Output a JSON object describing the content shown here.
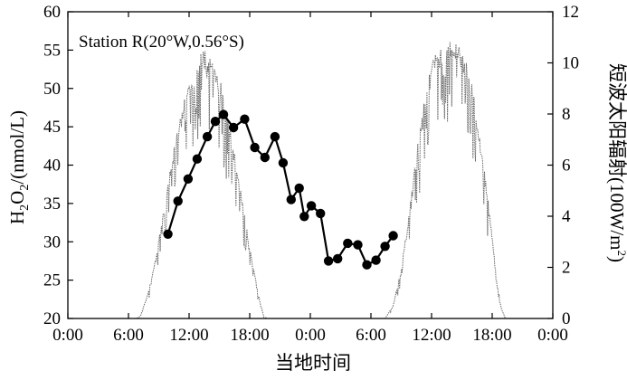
{
  "chart_data": {
    "type": "line",
    "annotation": "Station R(20°W,0.56°S)",
    "xlabel": "当地时间",
    "ylabel_left": {
      "base": "H",
      "sub1": "2",
      "mid": "O",
      "sub2": "2",
      "tail": "/(nmol/L)"
    },
    "ylabel_right": {
      "text": "短波太阳辐射(100W/m",
      "sup": "2",
      "close": ")"
    },
    "x_ticks": [
      "0:00",
      "6:00",
      "12:00",
      "18:00",
      "0:00",
      "6:00",
      "12:00",
      "18:00",
      "0:00"
    ],
    "x_tick_hours": [
      0,
      6,
      12,
      18,
      24,
      30,
      36,
      42,
      48
    ],
    "xlim_hours": [
      0,
      48
    ],
    "y_left_ticks": [
      "20",
      "25",
      "30",
      "35",
      "40",
      "45",
      "50",
      "55",
      "60"
    ],
    "y_left_values": [
      20,
      25,
      30,
      35,
      40,
      45,
      50,
      55,
      60
    ],
    "ylim_left": [
      20,
      60
    ],
    "y_right_ticks": [
      "0",
      "2",
      "4",
      "6",
      "8",
      "10",
      "12"
    ],
    "y_right_values": [
      0,
      2,
      4,
      6,
      8,
      10,
      12
    ],
    "ylim_right": [
      0,
      12
    ],
    "grid": false,
    "series": [
      {
        "axis": "left",
        "style": "line-markers",
        "color": "#000000",
        "points": [
          [
            9.9,
            31.0
          ],
          [
            10.9,
            35.3
          ],
          [
            11.9,
            38.2
          ],
          [
            12.8,
            40.8
          ],
          [
            13.8,
            43.7
          ],
          [
            14.6,
            45.7
          ],
          [
            15.4,
            46.6
          ],
          [
            16.4,
            44.9
          ],
          [
            17.5,
            46.0
          ],
          [
            18.5,
            42.3
          ],
          [
            19.5,
            41.0
          ],
          [
            20.5,
            43.7
          ],
          [
            21.3,
            40.3
          ],
          [
            22.1,
            35.5
          ],
          [
            22.9,
            37.0
          ],
          [
            23.4,
            33.3
          ],
          [
            24.1,
            34.7
          ],
          [
            25.0,
            33.7
          ],
          [
            25.8,
            27.5
          ],
          [
            26.7,
            27.8
          ],
          [
            27.7,
            29.8
          ],
          [
            28.7,
            29.6
          ],
          [
            29.6,
            27.0
          ],
          [
            30.5,
            27.6
          ],
          [
            31.4,
            29.4
          ],
          [
            32.2,
            30.8
          ]
        ]
      },
      {
        "axis": "right",
        "style": "dotted-trace",
        "color": "#6a6a6a",
        "envelope": [
          [
            0.8,
            0
          ],
          [
            6.8,
            0
          ],
          [
            7.2,
            0.1
          ],
          [
            8.0,
            1.1
          ],
          [
            8.8,
            2.6
          ],
          [
            9.6,
            4.6
          ],
          [
            10.6,
            6.9
          ],
          [
            11.6,
            8.7
          ],
          [
            12.6,
            9.9
          ],
          [
            13.4,
            10.6
          ],
          [
            13.9,
            10.3
          ],
          [
            14.6,
            10.0
          ],
          [
            15.2,
            9.2
          ],
          [
            16.2,
            7.2
          ],
          [
            17.2,
            4.8
          ],
          [
            18.2,
            2.3
          ],
          [
            19.0,
            0.7
          ],
          [
            19.4,
            0.05
          ],
          [
            19.8,
            0
          ],
          [
            24.2,
            0
          ],
          [
            31.4,
            0
          ],
          [
            32.2,
            0.5
          ],
          [
            33.0,
            2.0
          ],
          [
            33.8,
            4.2
          ],
          [
            34.6,
            6.8
          ],
          [
            35.4,
            9.1
          ],
          [
            36.2,
            10.3
          ],
          [
            37.0,
            10.6
          ],
          [
            37.8,
            10.9
          ],
          [
            38.6,
            10.8
          ],
          [
            39.4,
            10.2
          ],
          [
            40.2,
            8.8
          ],
          [
            41.0,
            6.6
          ],
          [
            41.8,
            4.0
          ],
          [
            42.4,
            1.7
          ],
          [
            42.9,
            0.4
          ],
          [
            43.3,
            0
          ],
          [
            47.0,
            0
          ]
        ]
      }
    ]
  }
}
